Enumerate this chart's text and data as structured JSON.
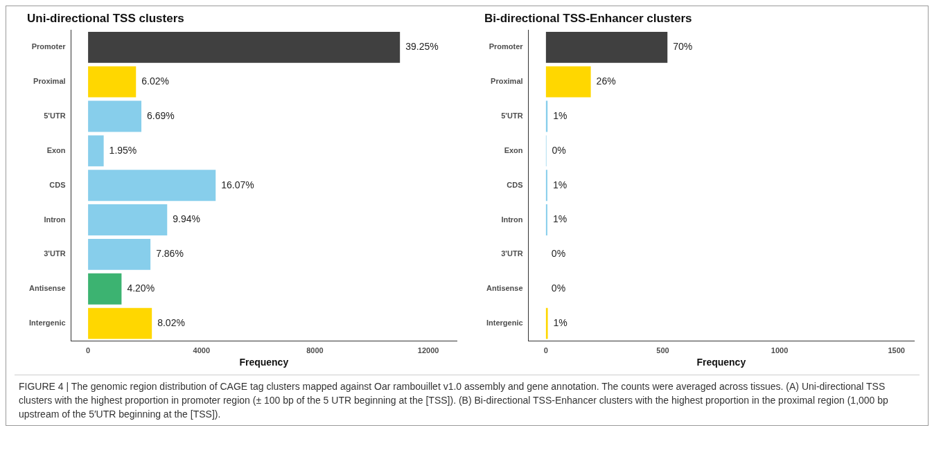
{
  "chart_data": [
    {
      "type": "bar",
      "orientation": "horizontal",
      "title": "Uni-directional TSS clusters",
      "xlabel": "Frequency",
      "categories": [
        "Promoter",
        "Proximal",
        "5'UTR",
        "Exon",
        "CDS",
        "Intron",
        "3'UTR",
        "Antisense",
        "Intergenic"
      ],
      "values": [
        11000,
        1690,
        1880,
        550,
        4500,
        2790,
        2200,
        1180,
        2250
      ],
      "colors": [
        "#404040",
        "#ffd700",
        "#87ceeb",
        "#87ceeb",
        "#87ceeb",
        "#87ceeb",
        "#87ceeb",
        "#3cb371",
        "#ffd700"
      ],
      "xlim": [
        -600,
        13000
      ],
      "xticks": [
        0,
        4000,
        8000,
        12000
      ],
      "grid": false,
      "legend": false,
      "annotations": [
        {
          "text": "39.25%",
          "x": 11000,
          "y": "Promoter"
        },
        {
          "text": "6.02%",
          "x": 1690,
          "y": "Proximal"
        },
        {
          "text": "6.69%",
          "x": 1880,
          "y": "5'UTR"
        },
        {
          "text": "1.95%",
          "x": 550,
          "y": "Exon"
        },
        {
          "text": "16.07%",
          "x": 4500,
          "y": "CDS"
        },
        {
          "text": "9.94%",
          "x": 2790,
          "y": "Intron"
        },
        {
          "text": "7.86%",
          "x": 2200,
          "y": "3'UTR"
        },
        {
          "text": "4.20%",
          "x": 1180,
          "y": "Antisense"
        },
        {
          "text": "8.02%",
          "x": 2250,
          "y": "Intergenic"
        },
        "FIGURE 4 | The genomic region distribution of CAGE tag clusters mapped against Oar rambouillet v1.0 assembly and gene annotation. The counts were averaged across tissues. (A) Uni-directional TSS clusters with the highest proportion in promoter region (± 100 bp of the 5 UTR beginning at the [TSS]). (B) Bi-directional TSS-Enhancer clusters with the highest proportion in the proximal region (1,000 bp upstream of the 5′UTR beginning at the [TSS])."
      ]
    },
    {
      "type": "bar",
      "orientation": "horizontal",
      "title": "Bi-directional TSS-Enhancer clusters",
      "xlabel": "Frequency",
      "categories": [
        "Promoter",
        "Proximal",
        "5'UTR",
        "Exon",
        "CDS",
        "Intron",
        "3'UTR",
        "Antisense",
        "Intergenic"
      ],
      "values": [
        520,
        192,
        7,
        2,
        6,
        6,
        0,
        0,
        8
      ],
      "colors": [
        "#404040",
        "#ffd700",
        "#87ceeb",
        "#87ceeb",
        "#87ceeb",
        "#87ceeb",
        "#87ceeb",
        "#3cb371",
        "#ffd700"
      ],
      "xlim": [
        -75,
        1575
      ],
      "xticks": [
        0,
        500,
        1000,
        1500
      ],
      "grid": false,
      "legend": false,
      "annotations": [
        {
          "text": "70%",
          "x": 520,
          "y": "Promoter"
        },
        {
          "text": "26%",
          "x": 192,
          "y": "Proximal"
        },
        {
          "text": "1%",
          "x": 7,
          "y": "5'UTR"
        },
        {
          "text": "0%",
          "x": 2,
          "y": "Exon"
        },
        {
          "text": "1%",
          "x": 6,
          "y": "CDS"
        },
        {
          "text": "1%",
          "x": 6,
          "y": "Intron"
        },
        {
          "text": "0%",
          "x": 0,
          "y": "3'UTR"
        },
        {
          "text": "0%",
          "x": 0,
          "y": "Antisense"
        },
        {
          "text": "1%",
          "x": 8,
          "y": "Intergenic"
        }
      ]
    }
  ]
}
